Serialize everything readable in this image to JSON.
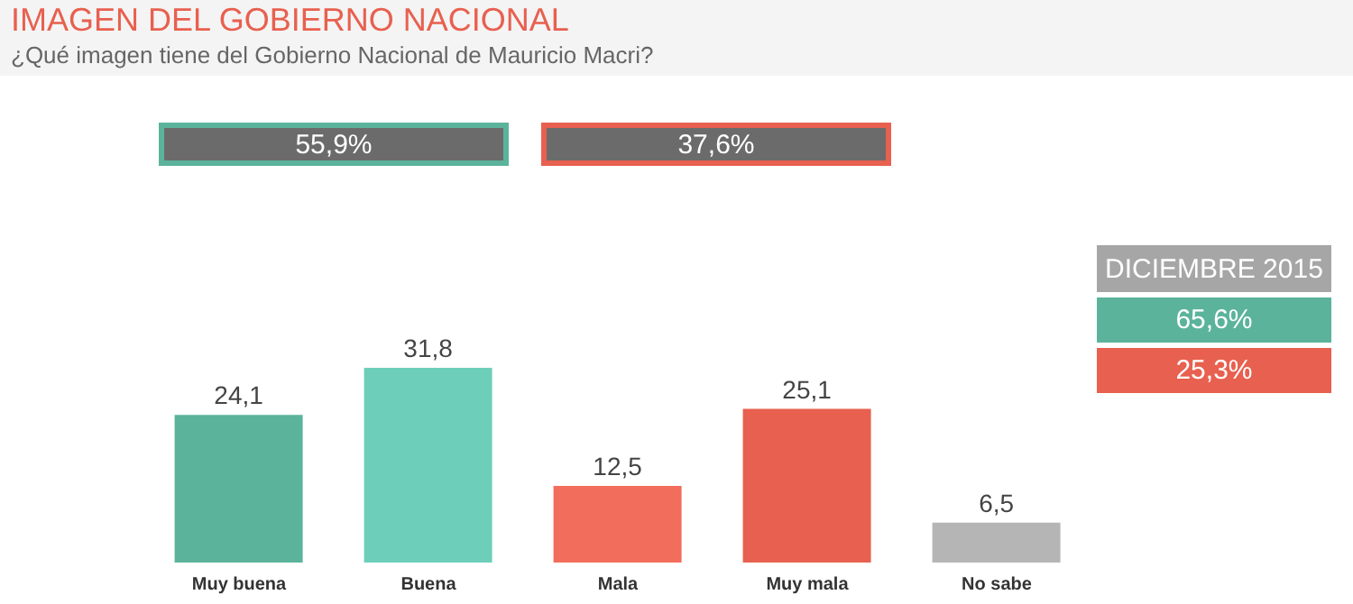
{
  "chart_data": {
    "type": "bar",
    "title": "IMAGEN DEL GOBIERNO NACIONAL",
    "subtitle": "¿Qué imagen tiene del Gobierno Nacional de Mauricio Macri?",
    "categories": [
      "Muy buena",
      "Buena",
      "Mala",
      "Muy mala",
      "No sabe"
    ],
    "values": [
      24.1,
      31.8,
      12.5,
      25.1,
      6.5
    ],
    "colors": [
      "#5bb39b",
      "#6dcfb9",
      "#f26d5b",
      "#e8604f",
      "#b5b5b5"
    ],
    "value_labels": [
      "24,1",
      "31,8",
      "12,5",
      "25,1",
      "6,5"
    ],
    "annotations": [
      "55,9%",
      "37,6%",
      "DICIEMBRE 2015",
      "65,6%",
      "25,3%"
    ],
    "grid": false,
    "legend": false
  }
}
